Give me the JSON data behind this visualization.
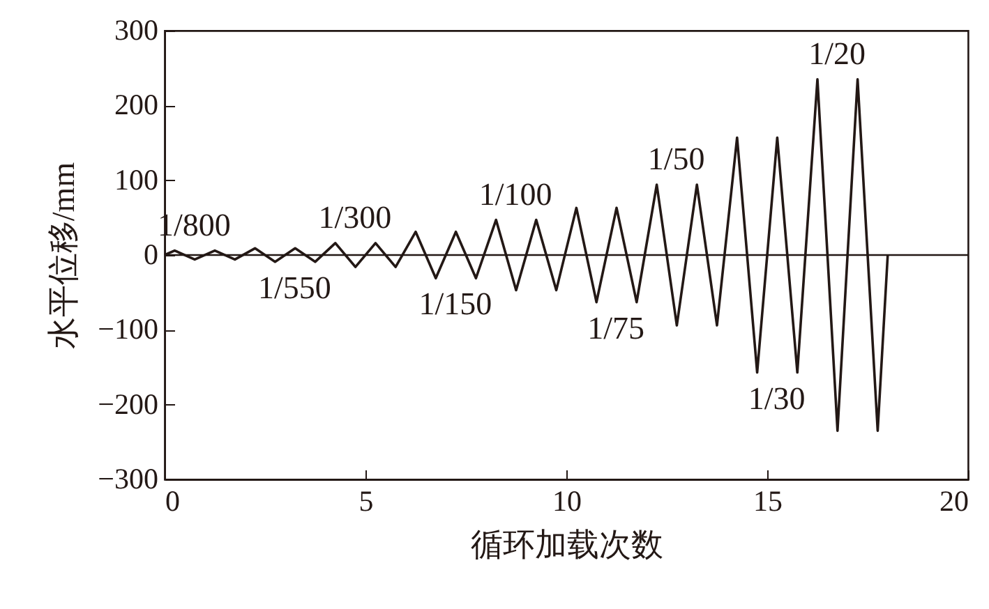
{
  "chart_data": {
    "type": "line",
    "xlabel": "循环加载次数",
    "ylabel": "水平位移/mm",
    "x": [
      0,
      0.25,
      0.75,
      1.25,
      1.75,
      2.25,
      2.75,
      3.25,
      3.75,
      4.25,
      4.75,
      5.25,
      5.75,
      6.25,
      6.75,
      7.25,
      7.75,
      8.25,
      8.75,
      9.25,
      9.75,
      10.25,
      10.75,
      11.25,
      11.75,
      12.25,
      12.75,
      13.25,
      13.75,
      14.25,
      14.75,
      15.25,
      15.75,
      16.25,
      16.75,
      17.25,
      17.75,
      18
    ],
    "series": [
      {
        "color": "#231815",
        "values": [
          0,
          6,
          -6,
          6,
          -6,
          9,
          -9,
          9,
          -9,
          16,
          -16,
          16,
          -16,
          31,
          -31,
          31,
          -31,
          47,
          -47,
          47,
          -47,
          63,
          -63,
          63,
          -63,
          94,
          -94,
          94,
          -94,
          157,
          -157,
          157,
          -157,
          235,
          -235,
          235,
          -235,
          0
        ]
      }
    ],
    "xlim": [
      0,
      20
    ],
    "xticks": [
      0,
      5,
      10,
      15,
      20
    ],
    "ylim": [
      -300,
      300
    ],
    "yticks": [
      -300,
      -200,
      -100,
      0,
      100,
      200,
      300
    ],
    "ref_lines": [
      {
        "axis": "y",
        "value": 0,
        "color": "#231815"
      }
    ],
    "annotations": [
      {
        "text": "1/800",
        "x": 0.25,
        "y": 6
      },
      {
        "text": "1/550",
        "x": 2.75,
        "y": -9
      },
      {
        "text": "1/300",
        "x": 4.25,
        "y": 16
      },
      {
        "text": "1/150",
        "x": 6.75,
        "y": -31
      },
      {
        "text": "1/100",
        "x": 8.25,
        "y": 47
      },
      {
        "text": "1/75",
        "x": 10.75,
        "y": -63
      },
      {
        "text": "1/50",
        "x": 12.25,
        "y": 94
      },
      {
        "text": "1/30",
        "x": 14.75,
        "y": -157
      },
      {
        "text": "1/20",
        "x": 16.25,
        "y": 235
      }
    ],
    "grid": false,
    "marker": "none",
    "line_style": "solid"
  }
}
